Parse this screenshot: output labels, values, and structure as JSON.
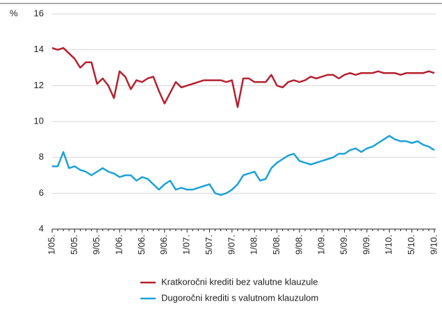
{
  "chart_data": {
    "type": "line",
    "y_label": "%",
    "categories": [
      "1/05.",
      null,
      null,
      null,
      "5/05.",
      null,
      null,
      null,
      "9/05.",
      null,
      null,
      null,
      "1/06.",
      null,
      null,
      null,
      "5/06.",
      null,
      null,
      null,
      "9/06.",
      null,
      null,
      null,
      "1/07.",
      null,
      null,
      null,
      "5/07.",
      null,
      null,
      null,
      "9/07.",
      null,
      null,
      null,
      "1/08.",
      null,
      null,
      null,
      "5/08.",
      null,
      null,
      null,
      "9/08.",
      null,
      null,
      null,
      "1/09.",
      null,
      null,
      null,
      "5/09.",
      null,
      null,
      null,
      "9/09.",
      null,
      null,
      null,
      "1/10.",
      null,
      null,
      null,
      "5/10.",
      null,
      null,
      null,
      "9/10."
    ],
    "series": [
      {
        "name": "Kratkoročni krediti bez valutne klauzule",
        "color": "#b5202e",
        "values": [
          14.1,
          14.0,
          14.1,
          13.8,
          13.5,
          13.0,
          13.3,
          13.3,
          12.1,
          12.4,
          12.0,
          11.3,
          12.8,
          12.5,
          11.8,
          12.3,
          12.2,
          12.4,
          12.5,
          11.7,
          11.0,
          11.6,
          12.2,
          11.9,
          12.0,
          12.1,
          12.2,
          12.3,
          12.3,
          12.3,
          12.3,
          12.2,
          12.3,
          10.8,
          12.4,
          12.4,
          12.2,
          12.2,
          12.2,
          12.6,
          12.0,
          11.9,
          12.2,
          12.3,
          12.2,
          12.3,
          12.5,
          12.4,
          12.5,
          12.6,
          12.6,
          12.4,
          12.6,
          12.7,
          12.6,
          12.7,
          12.7,
          12.7,
          12.8,
          12.7,
          12.7,
          12.7,
          12.6,
          12.7,
          12.7,
          12.7,
          12.7,
          12.8,
          12.7
        ]
      },
      {
        "name": "Dugoročni krediti s valutnom klauzulom",
        "color": "#1ba1d6",
        "values": [
          7.5,
          7.5,
          8.3,
          7.4,
          7.5,
          7.3,
          7.2,
          7.0,
          7.2,
          7.4,
          7.2,
          7.1,
          6.9,
          7.0,
          7.0,
          6.7,
          6.9,
          6.8,
          6.5,
          6.2,
          6.5,
          6.7,
          6.2,
          6.3,
          6.2,
          6.2,
          6.3,
          6.4,
          6.5,
          6.0,
          5.9,
          6.0,
          6.2,
          6.5,
          7.0,
          7.1,
          7.2,
          6.7,
          6.8,
          7.4,
          7.7,
          7.9,
          8.1,
          8.2,
          7.8,
          7.7,
          7.6,
          7.7,
          7.8,
          7.9,
          8.0,
          8.2,
          8.2,
          8.4,
          8.5,
          8.3,
          8.5,
          8.6,
          8.8,
          9.0,
          9.2,
          9.0,
          8.9,
          8.9,
          8.8,
          8.9,
          8.7,
          8.6,
          8.4
        ]
      }
    ],
    "ylim": [
      4,
      16
    ],
    "yticks": [
      4,
      6,
      8,
      10,
      12,
      14,
      16
    ],
    "grid": true
  }
}
